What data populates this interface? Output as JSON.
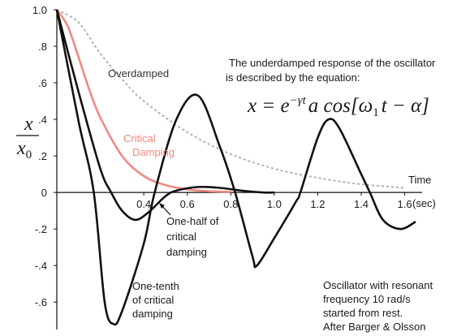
{
  "chart_data": {
    "type": "line",
    "y_label": {
      "numerator": "x",
      "denominator": "x",
      "denominator_sub": "0"
    },
    "x_label": {
      "line1": "Time",
      "line2": "(sec)"
    },
    "xlim": [
      0,
      1.68
    ],
    "ylim": [
      -0.75,
      1.0
    ],
    "xticks": [
      0.4,
      0.6,
      0.8,
      {
        "value": 1,
        "label": "1.0"
      },
      1.2,
      1.4,
      1.6
    ],
    "yticks": [
      {
        "value": 1,
        "label": "1.0"
      },
      {
        "value": 0.8,
        "label": ".8"
      },
      {
        "value": 0.6,
        "label": ".6"
      },
      {
        "value": 0.4,
        "label": ".4"
      },
      {
        "value": 0.2,
        "label": ".2"
      },
      0,
      {
        "value": -0.2,
        "label": "-.2"
      },
      {
        "value": -0.4,
        "label": "-.4"
      },
      {
        "value": -0.6,
        "label": "-.6"
      }
    ],
    "series": [
      {
        "label": [
          "Overdamped"
        ],
        "color": "#b0b0b0",
        "dashed": true,
        "x": [
          0,
          0.1,
          0.2,
          0.3,
          0.4,
          0.6,
          0.8,
          1.0,
          1.2,
          1.4,
          1.6
        ],
        "values": [
          1,
          0.93,
          0.76,
          0.62,
          0.5,
          0.33,
          0.21,
          0.13,
          0.08,
          0.045,
          0.025
        ]
      },
      {
        "label": [
          "Critical",
          "Damping"
        ],
        "color": "#f08a80",
        "dashed": false,
        "x": [
          0,
          0.05,
          0.1,
          0.15,
          0.2,
          0.3,
          0.4,
          0.5,
          0.6,
          0.7,
          0.8
        ],
        "values": [
          1,
          0.91,
          0.74,
          0.56,
          0.41,
          0.2,
          0.09,
          0.04,
          0.017,
          0.007,
          0.003
        ]
      },
      {
        "label": [
          "One-half of",
          "critical",
          "damping"
        ],
        "color": "#111111",
        "dashed": false,
        "x": [
          0,
          0.1,
          0.2,
          0.25,
          0.3,
          0.36,
          0.42,
          0.5,
          0.55,
          0.65,
          0.75,
          0.85,
          0.95,
          1.0
        ],
        "values": [
          1,
          0.55,
          0.13,
          0,
          -0.1,
          -0.15,
          -0.11,
          -0.02,
          0.01,
          0.03,
          0.025,
          0.01,
          0,
          0
        ]
      },
      {
        "label": [
          "One-tenth",
          "of critical",
          "damping"
        ],
        "color": "#111111",
        "dashed": false,
        "x": [
          0,
          0.1,
          0.17,
          0.22,
          0.26,
          0.3,
          0.4,
          0.45,
          0.55,
          0.65,
          0.75,
          0.82,
          0.9,
          0.92,
          1.0,
          1.1,
          1.12,
          1.2,
          1.25,
          1.3,
          1.4,
          1.44,
          1.5,
          1.58,
          1.65
        ],
        "values": [
          1,
          0.39,
          0,
          -0.6,
          -0.72,
          -0.65,
          -0.28,
          0,
          0.4,
          0.53,
          0.25,
          0,
          -0.35,
          -0.4,
          -0.25,
          -0.05,
          0,
          0.3,
          0.4,
          0.35,
          0.1,
          0,
          -0.15,
          -0.2,
          -0.16
        ]
      }
    ],
    "description": {
      "line1": "The underdamped response of the oscillator",
      "line2": "is described by the equation:"
    },
    "equation": {
      "lhs": "x = e",
      "exp": "−γt",
      "mid": "a cos[ω",
      "sub": "1",
      "end": "t − α]"
    },
    "note": [
      "Oscillator with resonant",
      "frequency 10 rad/s",
      "started from rest.",
      "After Barger & Olsson"
    ]
  }
}
